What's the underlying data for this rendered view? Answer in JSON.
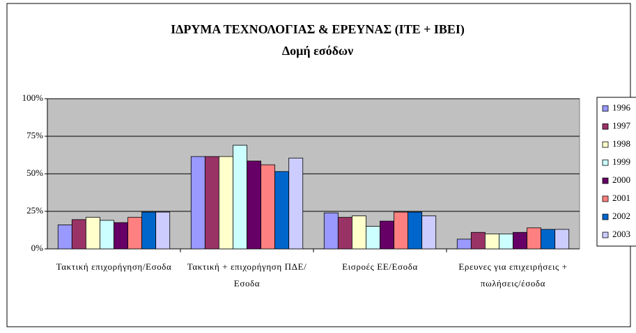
{
  "chart_data": {
    "type": "bar",
    "title": "ΙΔΡΥΜΑ ΤΕΧΝΟΛΟΓΙΑΣ & ΕΡΕΥΝΑΣ (ΙΤΕ + ΙΒΕΙ)",
    "subtitle": "Δομή εσόδων",
    "categories": [
      "Τακτική επιχορήγηση/Εσοδα",
      "Τακτική + επιχορήγηση ΠΔΕ/Εσοδα",
      "Εισροές ΕΕ/Εσοδα",
      "Ερευνες για επιχειρήσεις + πωλήσεις/έσοδα"
    ],
    "series": [
      {
        "name": "1996",
        "color": "#9999ff",
        "values": [
          16,
          61.5,
          24,
          6.5
        ]
      },
      {
        "name": "1997",
        "color": "#993366",
        "values": [
          19.5,
          61.5,
          21,
          11
        ]
      },
      {
        "name": "1998",
        "color": "#ffffcc",
        "values": [
          21,
          61.5,
          22,
          10
        ]
      },
      {
        "name": "1999",
        "color": "#ccffff",
        "values": [
          19,
          69,
          15,
          10
        ]
      },
      {
        "name": "2000",
        "color": "#660066",
        "values": [
          17.5,
          58.5,
          18.5,
          11
        ]
      },
      {
        "name": "2001",
        "color": "#ff8080",
        "values": [
          21,
          56,
          24.5,
          14
        ]
      },
      {
        "name": "2002",
        "color": "#0066cc",
        "values": [
          24.5,
          51.5,
          24.5,
          13
        ]
      },
      {
        "name": "2003",
        "color": "#ccccff",
        "values": [
          24.5,
          60.5,
          22,
          13
        ]
      }
    ],
    "ylim": [
      0,
      100
    ],
    "yticks": [
      {
        "value": 0,
        "label": "0%"
      },
      {
        "value": 25,
        "label": "25%"
      },
      {
        "value": 50,
        "label": "50%"
      },
      {
        "value": 75,
        "label": "75%"
      },
      {
        "value": 100,
        "label": "100%"
      }
    ],
    "grid": true,
    "legend": "right"
  }
}
